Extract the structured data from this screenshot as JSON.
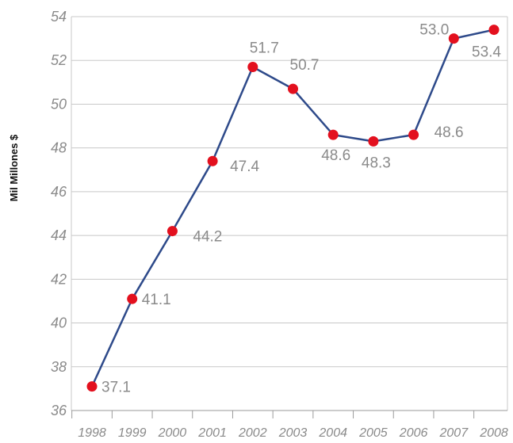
{
  "chart_data": {
    "type": "line",
    "title": "",
    "xlabel": "",
    "ylabel": "Mil Millones $",
    "categories": [
      "1998",
      "1999",
      "2000",
      "2001",
      "2002",
      "2003",
      "2004",
      "2005",
      "2006",
      "2007",
      "2008"
    ],
    "series": [
      {
        "values": [
          37.1,
          41.1,
          44.2,
          47.4,
          51.7,
          50.7,
          48.6,
          48.3,
          48.6,
          53.0,
          53.4
        ],
        "data_labels": [
          "37.1",
          "41.1",
          "44.2",
          "47.4",
          "51.7",
          "50.7",
          "48.6",
          "48.3",
          "48.6",
          "53.0",
          "53.4"
        ]
      }
    ],
    "ylim": [
      36,
      54
    ],
    "y_ticks": [
      "36",
      "38",
      "40",
      "42",
      "44",
      "46",
      "48",
      "50",
      "52",
      "54"
    ],
    "grid": true,
    "colors": {
      "line": "#2e4a8a",
      "marker": "#e3101e",
      "grid": "#c8c8c8",
      "text": "#8a8a8a"
    }
  }
}
